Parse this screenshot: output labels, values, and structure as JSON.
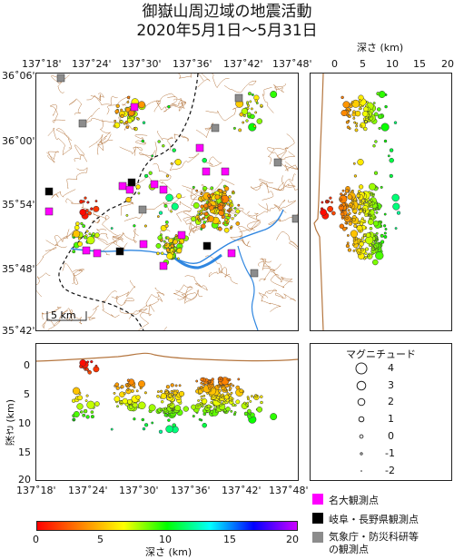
{
  "title": {
    "line1": "御嶽山周辺域の地震活動",
    "line2": "2020年5月1日～5月31日"
  },
  "map": {
    "lon_ticks": [
      "137˚18'",
      "137˚24'",
      "137˚30'",
      "137˚36'",
      "137˚42'",
      "137˚48'"
    ],
    "lat_ticks": [
      "36˚06'",
      "36˚00'",
      "35˚54'",
      "35˚48'",
      "35˚42'"
    ],
    "scale_label": "5 km",
    "contour_color": "#b5763f",
    "river_color": "#2f86e0",
    "boundary_color": "#111111"
  },
  "right_panel": {
    "depth_axis_title": "深さ (km)",
    "depth_ticks": [
      "0",
      "5",
      "10",
      "15",
      "20"
    ]
  },
  "bottom_panel": {
    "ylabel": "深さ (km)",
    "depth_ticks": [
      "0",
      "5",
      "10",
      "15",
      "20"
    ],
    "lon_ticks": [
      "137˚18'",
      "137˚24'",
      "137˚30'",
      "137˚36'",
      "137˚42'",
      "137˚48'"
    ]
  },
  "magnitude_legend": {
    "title": "マグニチュード",
    "items": [
      "4",
      "3",
      "2",
      "1",
      "0",
      "-1",
      "-2"
    ]
  },
  "station_legend": [
    {
      "label": "名大観測点",
      "color": "#ff00ff"
    },
    {
      "label": "岐阜・長野県観測点",
      "color": "#000000"
    },
    {
      "label": "気象庁・防災科研等\nの観測点",
      "color": "#8c8c8c"
    }
  ],
  "colorbar": {
    "ticks": [
      "0",
      "5",
      "10",
      "15",
      "20"
    ],
    "label": "深さ (km)",
    "colors": [
      "#ff0000",
      "#ff8000",
      "#ffff00",
      "#00ff00",
      "#00ffff",
      "#0000ff",
      "#cc00ff"
    ]
  }
}
